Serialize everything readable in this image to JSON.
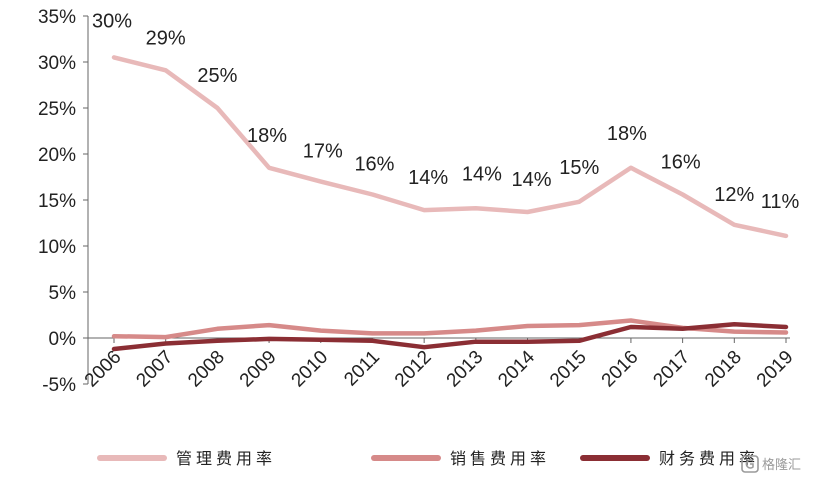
{
  "chart_data": {
    "type": "line",
    "x": [
      "2006",
      "2007",
      "2008",
      "2009",
      "2010",
      "2011",
      "2012",
      "2013",
      "2014",
      "2015",
      "2016",
      "2017",
      "2018",
      "2019"
    ],
    "yticks": [
      "35%",
      "30%",
      "25%",
      "20%",
      "15%",
      "10%",
      "5%",
      "0%",
      "-5%"
    ],
    "ylim": [
      -5,
      35
    ],
    "grid": false,
    "legend_position": "bottom",
    "series": [
      {
        "name": "管理费用率",
        "color": "#e8b9b9",
        "values": [
          30.5,
          29.1,
          25.0,
          18.5,
          17.0,
          15.6,
          13.9,
          14.1,
          13.7,
          14.8,
          18.5,
          15.6,
          12.3,
          11.1
        ],
        "labels": [
          "30%",
          "29%",
          "25%",
          "18%",
          "17%",
          "16%",
          "14%",
          "14%",
          "14%",
          "15%",
          "18%",
          "16%",
          "12%",
          "11%"
        ]
      },
      {
        "name": "销售费用率",
        "color": "#d68a89",
        "values": [
          0.2,
          0.1,
          1.0,
          1.4,
          0.8,
          0.5,
          0.5,
          0.8,
          1.3,
          1.4,
          1.9,
          1.1,
          0.7,
          0.6
        ]
      },
      {
        "name": "财务费用率",
        "color": "#8b2e34",
        "values": [
          -1.2,
          -0.6,
          -0.3,
          -0.1,
          -0.2,
          -0.3,
          -1.0,
          -0.4,
          -0.4,
          -0.3,
          1.2,
          1.0,
          1.5,
          1.2
        ]
      }
    ]
  },
  "watermark": {
    "text": "格隆汇"
  }
}
